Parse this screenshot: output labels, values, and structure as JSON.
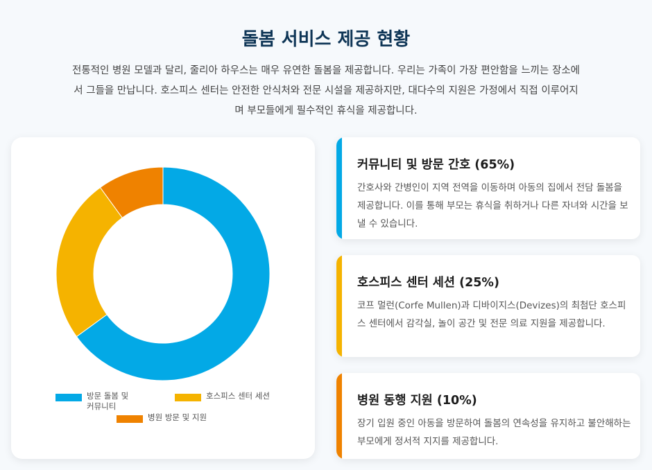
{
  "page": {
    "title": "돌봄 서비스 제공 현황",
    "intro": "전통적인 병원 모델과 달리, 줄리아 하우스는 매우 유연한 돌봄을 제공합니다. 우리는 가족이 가장 편안함을 느끼는 장소에서 그들을 만납니다. 호스피스 센터는 안전한 안식처와 전문 시설을 제공하지만, 대다수의 지원은 가정에서 직접 이루어지며 부모들에게 필수적인 휴식을 제공합니다."
  },
  "chart_data": {
    "type": "pie",
    "donut": true,
    "categories": [
      "방문 돌봄 및 커뮤니티",
      "호스피스 센터 세션",
      "병원 방문 및 지원"
    ],
    "values": [
      65,
      25,
      10
    ],
    "colors": [
      "#03a9e6",
      "#f5b300",
      "#ef8200"
    ],
    "legend_position": "bottom"
  },
  "cards": [
    {
      "title": "커뮤니티 및 방문 간호 (65%)",
      "text": "간호사와 간병인이 지역 전역을 이동하며 아동의 집에서 전담 돌봄을 제공합니다. 이를 통해 부모는 휴식을 취하거나 다른 자녀와 시간을 보낼 수 있습니다.",
      "color": "#03a9e6"
    },
    {
      "title": "호스피스 센터 세션 (25%)",
      "text": "코프 멀런(Corfe Mullen)과 디바이지스(Devizes)의 최첨단 호스피스 센터에서 감각실, 놀이 공간 및 전문 의료 지원을 제공합니다.",
      "color": "#f5b300"
    },
    {
      "title": "병원 동행 지원 (10%)",
      "text": "장기 입원 중인 아동을 방문하여 돌봄의 연속성을 유지하고 불안해하는 부모에게 정서적 지지를 제공합니다.",
      "color": "#ef8200"
    }
  ]
}
